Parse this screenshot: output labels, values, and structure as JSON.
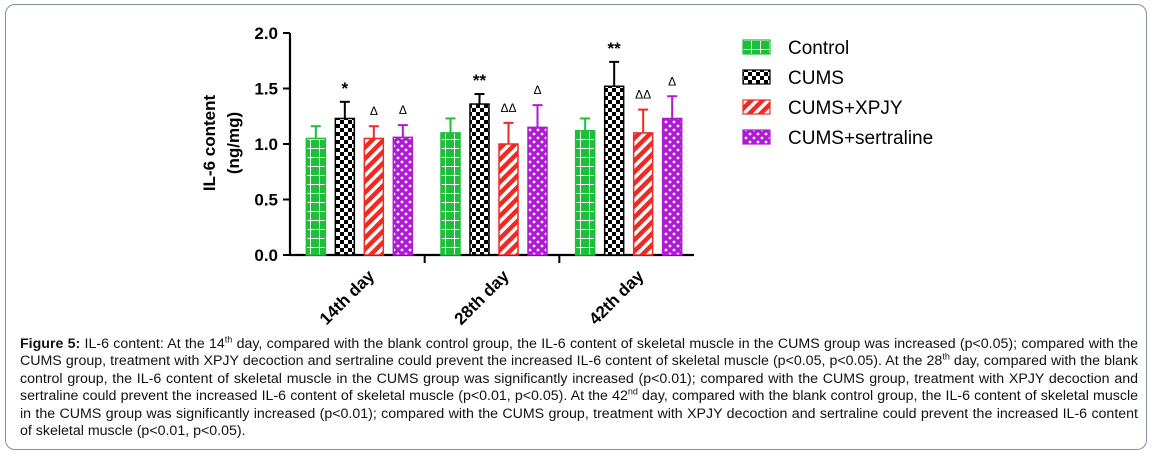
{
  "chart_data": {
    "type": "bar",
    "ylabel_line1": "IL-6 content",
    "ylabel_line2": "(ng/mg)",
    "ylim": [
      0,
      2.0
    ],
    "yticks": [
      "0.0",
      "0.5",
      "1.0",
      "1.5",
      "2.0"
    ],
    "categories": [
      "14th day",
      "28th day",
      "42th day"
    ],
    "series": [
      {
        "name": "Control",
        "color": "#1dbe3a",
        "pattern": "cross-lines",
        "values": [
          1.05,
          1.1,
          1.12
        ],
        "errors": [
          0.11,
          0.13,
          0.11
        ],
        "marks": [
          "",
          "",
          ""
        ]
      },
      {
        "name": "CUMS",
        "color": "#000000",
        "pattern": "checker",
        "values": [
          1.23,
          1.36,
          1.52
        ],
        "errors": [
          0.15,
          0.09,
          0.22
        ],
        "marks": [
          "*",
          "**",
          "**"
        ]
      },
      {
        "name": "CUMS+XPJY",
        "color": "#ee2a24",
        "pattern": "diagonal",
        "values": [
          1.05,
          1.0,
          1.1
        ],
        "errors": [
          0.11,
          0.19,
          0.21
        ],
        "marks": [
          "Δ",
          "ΔΔ",
          "ΔΔ"
        ]
      },
      {
        "name": "CUMS+sertraline",
        "color": "#b019d4",
        "pattern": "dots",
        "values": [
          1.06,
          1.15,
          1.23
        ],
        "errors": [
          0.11,
          0.2,
          0.2
        ],
        "marks": [
          "Δ",
          "Δ",
          "Δ"
        ]
      }
    ],
    "legend_position": "right"
  },
  "caption": {
    "label": "Figure 5:",
    "p1": " IL-6 content: At the 14",
    "sup1": "th",
    "p2": " day, compared with the blank control group, the IL-6 content of skeletal muscle in the CUMS group was increased (p<0.05); compared with the CUMS group, treatment with XPJY decoction and sertraline could prevent the increased IL-6 content of skeletal muscle (p<0.05, p<0.05). At the 28",
    "sup2": "th",
    "p3": " day, compared with the blank control group, the IL-6 content of skeletal muscle in the CUMS group was significantly increased (p<0.01); compared with the CUMS group, treatment with XPJY decoction and sertraline could prevent the increased IL-6 content of skeletal muscle (p<0.01, p<0.05). At the 42",
    "sup3": "nd",
    "p4": " day, compared with the blank control group, the IL-6 content of skeletal muscle in the CUMS group was significantly increased (p<0.01); compared with the CUMS group, treatment with XPJY decoction and sertraline could prevent the increased IL-6 content of skeletal muscle (p<0.01, p<0.05)."
  }
}
